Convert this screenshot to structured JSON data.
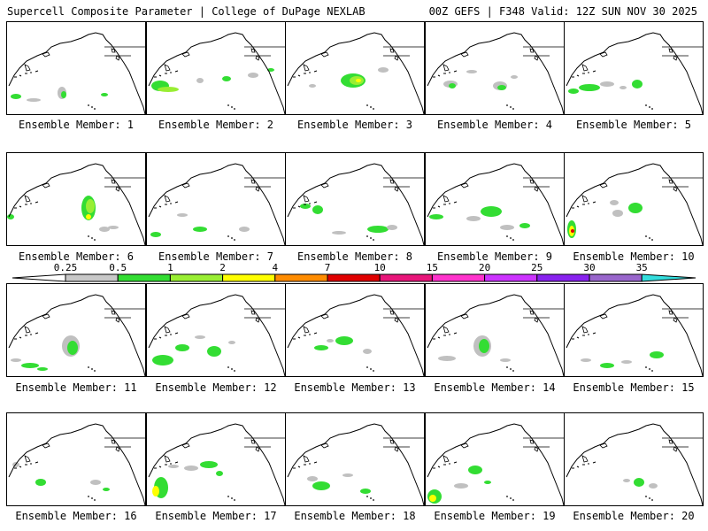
{
  "header": {
    "left": "Supercell Composite Parameter | College of DuPage NEXLAB",
    "right": "00Z GEFS | F348 Valid: 12Z SUN NOV 30 2025"
  },
  "colors": {
    "coast": "#000000",
    "gray": "#c0c0c0",
    "green": "#33dd33",
    "lightgreen": "#99ee33",
    "yellow": "#ffff00",
    "orange": "#ff8c00",
    "red": "#e00000"
  },
  "colorbar": {
    "ticks": [
      "0.25",
      "0.5",
      "1",
      "2",
      "4",
      "7",
      "10",
      "15",
      "20",
      "25",
      "30",
      "35"
    ],
    "colors": [
      "#c8c8c8",
      "#33dd33",
      "#99ee33",
      "#ffff00",
      "#ff8c00",
      "#e00000",
      "#e8167a",
      "#ff33cc",
      "#cc33ff",
      "#8822ee",
      "#9966cc",
      "#33dddd"
    ]
  },
  "members": [
    {
      "label": "Ensemble Member: 1"
    },
    {
      "label": "Ensemble Member: 2"
    },
    {
      "label": "Ensemble Member: 3"
    },
    {
      "label": "Ensemble Member: 4"
    },
    {
      "label": "Ensemble Member: 5"
    },
    {
      "label": "Ensemble Member: 6"
    },
    {
      "label": "Ensemble Member: 7"
    },
    {
      "label": "Ensemble Member: 8"
    },
    {
      "label": "Ensemble Member: 9"
    },
    {
      "label": "Ensemble Member: 10"
    },
    {
      "label": "Ensemble Member: 11"
    },
    {
      "label": "Ensemble Member: 12"
    },
    {
      "label": "Ensemble Member: 13"
    },
    {
      "label": "Ensemble Member: 14"
    },
    {
      "label": "Ensemble Member: 15"
    },
    {
      "label": "Ensemble Member: 16"
    },
    {
      "label": "Ensemble Member: 17"
    },
    {
      "label": "Ensemble Member: 18"
    },
    {
      "label": "Ensemble Member: 19"
    },
    {
      "label": "Ensemble Member: 20"
    }
  ]
}
